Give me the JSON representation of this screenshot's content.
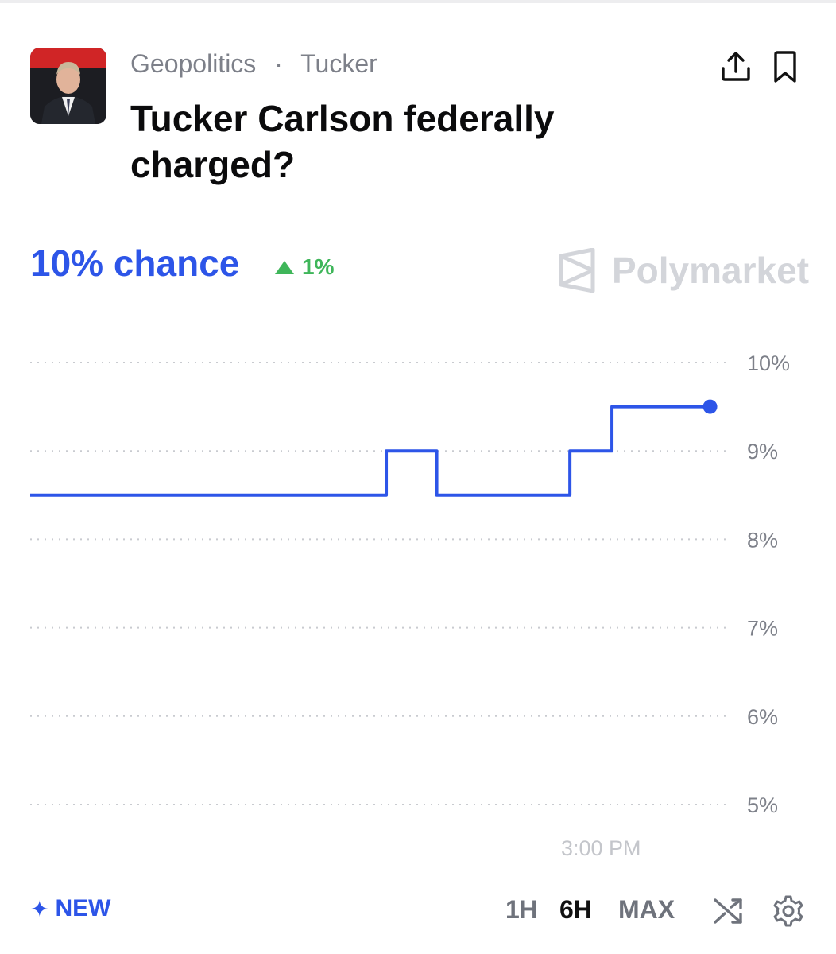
{
  "market": {
    "category": "Geopolitics",
    "separator": "·",
    "tag": "Tucker",
    "title": "Tucker Carlson federally charged?",
    "thumbnail_icon": "person-photo"
  },
  "actions": {
    "share_icon": "share-icon",
    "bookmark_icon": "bookmark-icon"
  },
  "odds": {
    "chance_text": "10% chance",
    "change_text": "1%",
    "change_direction": "up",
    "change_color": "#3fb65a",
    "accent_color": "#2d55e8"
  },
  "brand": {
    "name": "Polymarket",
    "logo_icon": "polymarket-logo-icon"
  },
  "chart_data": {
    "type": "line",
    "step": true,
    "ylim": [
      5,
      10
    ],
    "yticks": [
      10,
      9,
      8,
      7,
      6,
      5
    ],
    "ytick_labels": [
      "10%",
      "9%",
      "8%",
      "7%",
      "6%",
      "5%"
    ],
    "xtick_labels": [
      "3:00 PM"
    ],
    "grid": true,
    "grid_style": "dotted",
    "legend": false,
    "series": [
      {
        "color": "#2d55e8",
        "points": [
          [
            0.0,
            8.5
          ],
          [
            0.508,
            8.5
          ],
          [
            0.508,
            9.0
          ],
          [
            0.58,
            9.0
          ],
          [
            0.58,
            8.5
          ],
          [
            0.77,
            8.5
          ],
          [
            0.77,
            9.0
          ],
          [
            0.83,
            9.0
          ],
          [
            0.83,
            9.5
          ],
          [
            0.97,
            9.5
          ]
        ],
        "end_marker": true
      }
    ]
  },
  "footer": {
    "new_label": "NEW",
    "new_icon": "sparkle-icon",
    "ranges": [
      "1H",
      "6H",
      "MAX"
    ],
    "active_range": "6H",
    "shuffle_icon": "shuffle-icon",
    "settings_icon": "gear-icon"
  }
}
